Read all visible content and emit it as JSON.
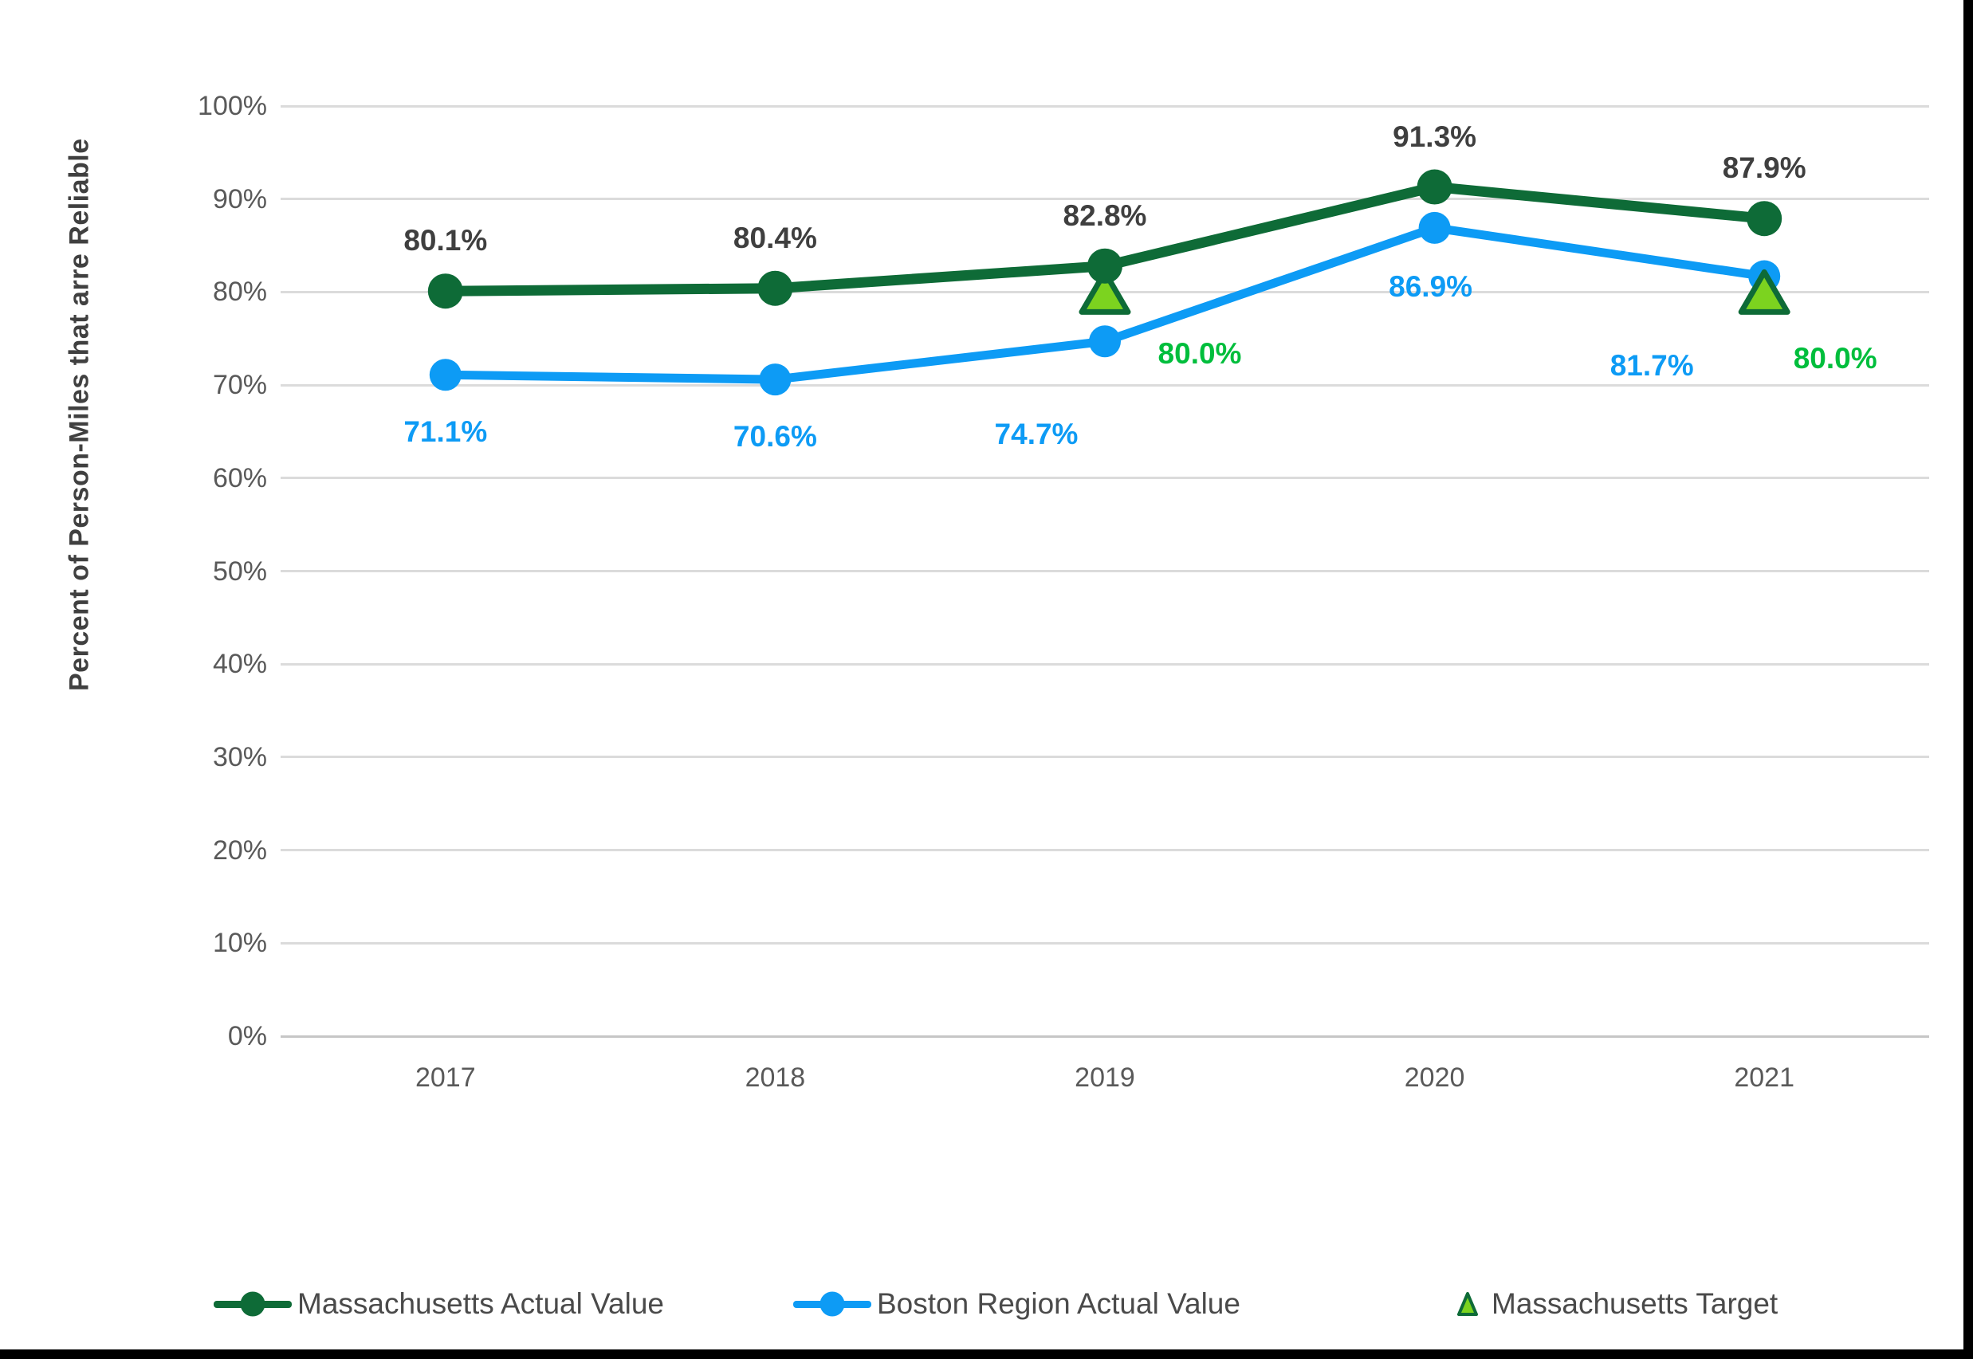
{
  "chart_data": {
    "type": "line",
    "title": "",
    "xlabel": "",
    "ylabel": "Percent of Person-Miles that arre Reliable",
    "categories": [
      "2017",
      "2018",
      "2019",
      "2020",
      "2021"
    ],
    "ylim": [
      0,
      100
    ],
    "ytick_step": 10,
    "ytick_labels": [
      "0%",
      "10%",
      "20%",
      "30%",
      "40%",
      "50%",
      "60%",
      "70%",
      "80%",
      "90%",
      "100%"
    ],
    "grid": true,
    "legend_position": "bottom",
    "series": [
      {
        "name": "Massachusetts Actual Value",
        "type": "line",
        "marker": "circle",
        "color": "#0E6B37",
        "label_color": "#3F3F3F",
        "line_width": 13,
        "marker_radius": 22,
        "z": 2,
        "values": [
          80.1,
          80.4,
          82.8,
          91.3,
          87.9
        ],
        "labels": [
          "80.1%",
          "80.4%",
          "82.8%",
          "91.3%",
          "87.9%"
        ],
        "label_offsets": [
          [
            0,
            -63
          ],
          [
            0,
            -63
          ],
          [
            0,
            -63
          ],
          [
            0,
            -63
          ],
          [
            0,
            -63
          ]
        ]
      },
      {
        "name": "Boston Region Actual Value",
        "type": "line",
        "marker": "circle",
        "color": "#0D9BF5",
        "label_color": "#0D9BF5",
        "line_width": 11,
        "marker_radius": 20,
        "z": 0,
        "values": [
          71.1,
          70.6,
          74.7,
          86.9,
          81.7
        ],
        "labels": [
          "71.1%",
          "70.6%",
          "74.7%",
          "86.9%",
          "81.7%"
        ],
        "label_offsets": [
          [
            0,
            72
          ],
          [
            0,
            72
          ],
          [
            -86,
            117
          ],
          [
            -5,
            74
          ],
          [
            -141,
            112
          ]
        ]
      },
      {
        "name": "Massachusetts Target",
        "type": "scatter",
        "marker": "triangle",
        "color": "#7CD31F",
        "border_color": "#0E6B37",
        "label_color": "#00BE3C",
        "z": 1,
        "categories_present": [
          "2019",
          "2021"
        ],
        "values": [
          null,
          null,
          80.0,
          null,
          80.0
        ],
        "labels": [
          null,
          null,
          "80.0%",
          null,
          "80.0%"
        ],
        "label_offsets": [
          null,
          null,
          [
            119,
            78
          ],
          null,
          [
            89,
            84
          ]
        ]
      }
    ]
  },
  "legend": {
    "items": [
      {
        "label": "Massachusetts Actual Value",
        "marker": "circle-line",
        "color": "#0E6B37"
      },
      {
        "label": "Boston Region Actual Value",
        "marker": "circle-line",
        "color": "#0D9BF5"
      },
      {
        "label": "Massachusetts Target",
        "marker": "triangle",
        "color": "#7CD31F",
        "border_color": "#0E6B37"
      }
    ]
  },
  "colors": {
    "background": "#FFFFFF",
    "grid": "#DBDBDB",
    "axis_line": "#C6C6C6",
    "tick_label": "#595959",
    "axis_title": "#404040",
    "legend_text": "#4A4A4A",
    "edge_bar": "#000000"
  }
}
